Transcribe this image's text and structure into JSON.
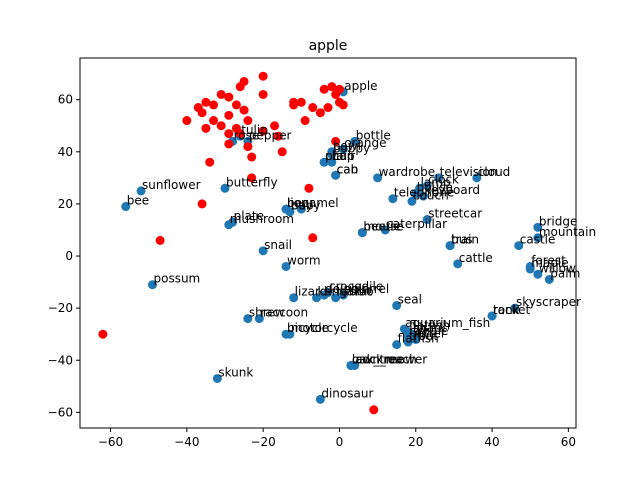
{
  "chart_data": {
    "type": "scatter",
    "title": "apple",
    "xlabel": "",
    "ylabel": "",
    "xlim": [
      -68,
      62
    ],
    "ylim": [
      -66,
      76
    ],
    "xticks": [
      -60,
      -40,
      -20,
      0,
      20,
      40,
      60
    ],
    "yticks": [
      -60,
      -40,
      -20,
      0,
      20,
      40,
      60
    ],
    "grid": false,
    "colors": {
      "labeled": "#1f77b4",
      "unlabeled": "#ff0000"
    },
    "labeled_points": [
      {
        "x": 1,
        "y": 63,
        "label": "apple"
      },
      {
        "x": 4,
        "y": 44,
        "label": "bottle"
      },
      {
        "x": -2,
        "y": 40,
        "label": "bowl"
      },
      {
        "x": -2,
        "y": 39,
        "label": "poppy"
      },
      {
        "x": 1,
        "y": 41,
        "label": "orange"
      },
      {
        "x": -4,
        "y": 36,
        "label": "plain"
      },
      {
        "x": -2,
        "y": 36,
        "label": "cup"
      },
      {
        "x": -4,
        "y": 36,
        "label": "chair"
      },
      {
        "x": -1,
        "y": 31,
        "label": "can"
      },
      {
        "x": -1,
        "y": 31,
        "label": "cab"
      },
      {
        "x": -26,
        "y": 46,
        "label": "tulip"
      },
      {
        "x": -28,
        "y": 44,
        "label": "rose"
      },
      {
        "x": -24,
        "y": 44,
        "label": "pepper"
      },
      {
        "x": -30,
        "y": 26,
        "label": "butterfly"
      },
      {
        "x": -52,
        "y": 25,
        "label": "sunflower"
      },
      {
        "x": -56,
        "y": 19,
        "label": "bee"
      },
      {
        "x": -10,
        "y": 18,
        "label": "camel"
      },
      {
        "x": -14,
        "y": 18,
        "label": "bear"
      },
      {
        "x": -14,
        "y": 18,
        "label": "lion"
      },
      {
        "x": -13,
        "y": 17,
        "label": "baby"
      },
      {
        "x": -13,
        "y": 17,
        "label": "boy"
      },
      {
        "x": -28,
        "y": 13,
        "label": "plate"
      },
      {
        "x": -29,
        "y": 12,
        "label": "mushroom"
      },
      {
        "x": 10,
        "y": 30,
        "label": "wardrobe"
      },
      {
        "x": 14,
        "y": 22,
        "label": "telephone"
      },
      {
        "x": 19,
        "y": 21,
        "label": "couch"
      },
      {
        "x": 20,
        "y": 24,
        "label": "house"
      },
      {
        "x": 21,
        "y": 26,
        "label": "lamp"
      },
      {
        "x": 23,
        "y": 27,
        "label": "clock"
      },
      {
        "x": 26,
        "y": 30,
        "label": "television"
      },
      {
        "x": 36,
        "y": 30,
        "label": "cloud"
      },
      {
        "x": 22,
        "y": 23,
        "label": "keyboard"
      },
      {
        "x": 12,
        "y": 10,
        "label": "caterpillar"
      },
      {
        "x": 6,
        "y": 9,
        "label": "mouse"
      },
      {
        "x": 6,
        "y": 9,
        "label": "beetle"
      },
      {
        "x": 23,
        "y": 14,
        "label": "streetcar"
      },
      {
        "x": 29,
        "y": 4,
        "label": "bus"
      },
      {
        "x": 29,
        "y": 4,
        "label": "train"
      },
      {
        "x": 31,
        "y": -3,
        "label": "cattle"
      },
      {
        "x": 47,
        "y": 4,
        "label": "castle"
      },
      {
        "x": 52,
        "y": 11,
        "label": "bridge"
      },
      {
        "x": 52,
        "y": 7,
        "label": "mountain"
      },
      {
        "x": 50,
        "y": -4,
        "label": "forest"
      },
      {
        "x": 50,
        "y": -5,
        "label": "maple"
      },
      {
        "x": 52,
        "y": -7,
        "label": "willow"
      },
      {
        "x": 55,
        "y": -9,
        "label": "palm"
      },
      {
        "x": -20,
        "y": 2,
        "label": "snail"
      },
      {
        "x": -14,
        "y": -4,
        "label": "worm"
      },
      {
        "x": -49,
        "y": -11,
        "label": "possum"
      },
      {
        "x": -3,
        "y": -14,
        "label": "crocodile"
      },
      {
        "x": -4,
        "y": -15,
        "label": "dolphin"
      },
      {
        "x": -6,
        "y": -16,
        "label": "kangaroo"
      },
      {
        "x": -12,
        "y": -16,
        "label": "lizard"
      },
      {
        "x": -1,
        "y": -16,
        "label": "rabbit"
      },
      {
        "x": 1,
        "y": -15,
        "label": "squirrel"
      },
      {
        "x": 15,
        "y": -19,
        "label": "seal"
      },
      {
        "x": 46,
        "y": -20,
        "label": "skyscraper"
      },
      {
        "x": 40,
        "y": -23,
        "label": "rocket"
      },
      {
        "x": 40,
        "y": -23,
        "label": "tank"
      },
      {
        "x": -24,
        "y": -24,
        "label": "shrew"
      },
      {
        "x": -21,
        "y": -24,
        "label": "raccoon"
      },
      {
        "x": -14,
        "y": -30,
        "label": "bicycle"
      },
      {
        "x": -13,
        "y": -30,
        "label": "motorcycle"
      },
      {
        "x": 17,
        "y": -28,
        "label": "aquarium_fish"
      },
      {
        "x": 18,
        "y": -29,
        "label": "flatfish"
      },
      {
        "x": 19,
        "y": -30,
        "label": "shark"
      },
      {
        "x": 18,
        "y": -31,
        "label": "ray"
      },
      {
        "x": 18,
        "y": -33,
        "label": "trout"
      },
      {
        "x": 15,
        "y": -34,
        "label": "flatfish"
      },
      {
        "x": 20,
        "y": -32,
        "label": "otter"
      },
      {
        "x": 19,
        "y": -31,
        "label": "whale"
      },
      {
        "x": 3,
        "y": -42,
        "label": "lawn_mower"
      },
      {
        "x": 4,
        "y": -42,
        "label": "cockroach"
      },
      {
        "x": 3,
        "y": -42,
        "label": "oak_tree"
      },
      {
        "x": -32,
        "y": -47,
        "label": "skunk"
      },
      {
        "x": -5,
        "y": -55,
        "label": "dinosaur"
      }
    ],
    "unlabeled_points": [
      {
        "x": -40,
        "y": 52
      },
      {
        "x": -37,
        "y": 57
      },
      {
        "x": -35,
        "y": 59
      },
      {
        "x": -36,
        "y": 55
      },
      {
        "x": -33,
        "y": 58
      },
      {
        "x": -31,
        "y": 62
      },
      {
        "x": -29,
        "y": 61
      },
      {
        "x": -26,
        "y": 65
      },
      {
        "x": -25,
        "y": 67
      },
      {
        "x": -20,
        "y": 69
      },
      {
        "x": -20,
        "y": 62
      },
      {
        "x": -27,
        "y": 58
      },
      {
        "x": -25,
        "y": 56
      },
      {
        "x": -29,
        "y": 54
      },
      {
        "x": -24,
        "y": 52
      },
      {
        "x": -31,
        "y": 50
      },
      {
        "x": -27,
        "y": 49
      },
      {
        "x": -29,
        "y": 47
      },
      {
        "x": -33,
        "y": 52
      },
      {
        "x": -35,
        "y": 49
      },
      {
        "x": -26,
        "y": 47
      },
      {
        "x": -29,
        "y": 43
      },
      {
        "x": -24,
        "y": 42
      },
      {
        "x": -23,
        "y": 38
      },
      {
        "x": -20,
        "y": 48
      },
      {
        "x": -17,
        "y": 50
      },
      {
        "x": -16,
        "y": 46
      },
      {
        "x": -15,
        "y": 40
      },
      {
        "x": -34,
        "y": 36
      },
      {
        "x": -12,
        "y": 59
      },
      {
        "x": -10,
        "y": 59
      },
      {
        "x": -7,
        "y": 57
      },
      {
        "x": -4,
        "y": 64
      },
      {
        "x": -2,
        "y": 65
      },
      {
        "x": 0,
        "y": 64
      },
      {
        "x": -1,
        "y": 62
      },
      {
        "x": 0,
        "y": 59
      },
      {
        "x": -3,
        "y": 57
      },
      {
        "x": -5,
        "y": 55
      },
      {
        "x": -9,
        "y": 52
      },
      {
        "x": 1,
        "y": 58
      },
      {
        "x": -1,
        "y": 44
      },
      {
        "x": -12,
        "y": 58
      },
      {
        "x": -23,
        "y": 30
      },
      {
        "x": -36,
        "y": 20
      },
      {
        "x": -8,
        "y": 26
      },
      {
        "x": -7,
        "y": 7
      },
      {
        "x": -47,
        "y": 6
      },
      {
        "x": -62,
        "y": -30
      },
      {
        "x": 9,
        "y": -59
      }
    ]
  }
}
